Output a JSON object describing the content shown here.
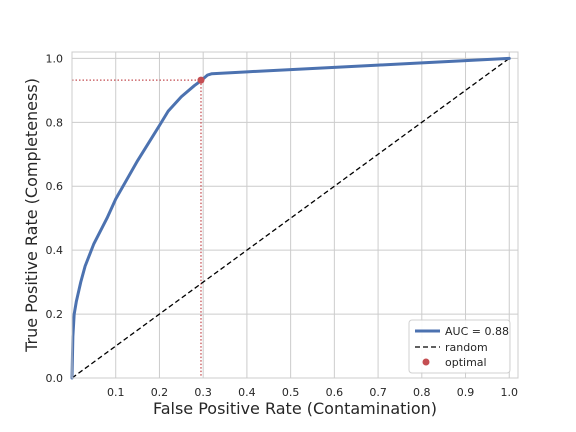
{
  "chart_data": {
    "type": "line",
    "title": "",
    "xlabel": "False Positive Rate (Contamination)",
    "ylabel": "True Positive Rate (Completeness)",
    "xlim": [
      0.0,
      1.02
    ],
    "ylim": [
      0.0,
      1.02
    ],
    "grid": true,
    "legend_position": "lower-right",
    "x_ticks": [
      "0.1",
      "0.2",
      "0.3",
      "0.4",
      "0.5",
      "0.6",
      "0.7",
      "0.8",
      "0.9",
      "1.0"
    ],
    "x_tick_values": [
      0.1,
      0.2,
      0.3,
      0.4,
      0.5,
      0.6,
      0.7,
      0.8,
      0.9,
      1.0
    ],
    "y_ticks": [
      "0.0",
      "0.2",
      "0.4",
      "0.6",
      "0.8",
      "1.0"
    ],
    "y_tick_values": [
      0.0,
      0.2,
      0.4,
      0.6,
      0.8,
      1.0
    ],
    "series": [
      {
        "name": "AUC = 0.88",
        "style": "solid",
        "color": "#4c72b0",
        "x": [
          0.0,
          0.002,
          0.005,
          0.01,
          0.02,
          0.03,
          0.05,
          0.08,
          0.1,
          0.15,
          0.2,
          0.22,
          0.25,
          0.28,
          0.295,
          0.31,
          0.32,
          0.4,
          0.5,
          0.6,
          0.7,
          0.8,
          0.9,
          1.0
        ],
        "y": [
          0.0,
          0.13,
          0.2,
          0.24,
          0.3,
          0.35,
          0.42,
          0.5,
          0.56,
          0.68,
          0.79,
          0.835,
          0.88,
          0.915,
          0.93,
          0.948,
          0.952,
          0.958,
          0.965,
          0.972,
          0.979,
          0.986,
          0.993,
          1.0
        ]
      },
      {
        "name": "random",
        "style": "dashed",
        "color": "#000000",
        "x": [
          0.0,
          1.0
        ],
        "y": [
          0.0,
          1.0
        ]
      }
    ],
    "optimal_point": {
      "name": "optimal",
      "x": 0.295,
      "y": 0.932,
      "color": "#c44e52"
    },
    "guide_color": "#c44e52"
  }
}
